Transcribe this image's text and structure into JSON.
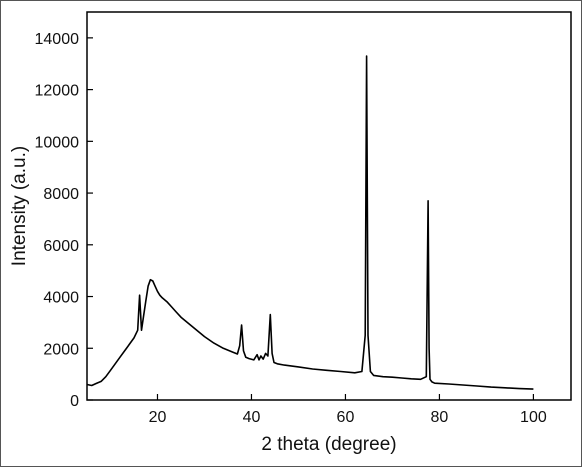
{
  "chart_data": {
    "type": "line",
    "title": "",
    "xlabel": "2 theta (degree)",
    "ylabel": "Intensity (a.u.)",
    "xlim": [
      5,
      108
    ],
    "ylim": [
      0,
      15000
    ],
    "xticks": [
      20,
      40,
      60,
      80,
      100
    ],
    "yticks": [
      0,
      2000,
      4000,
      6000,
      8000,
      10000,
      12000,
      14000
    ],
    "grid": false,
    "legend": "none",
    "line_color": "#000000",
    "series": [
      {
        "x": [
          5,
          6,
          7,
          8,
          9,
          10,
          11,
          12,
          13,
          14,
          15,
          15.8,
          16.2,
          16.6,
          17.0,
          17.5,
          18.0,
          18.5,
          19.0,
          19.5,
          20.0,
          20.5,
          21,
          22,
          23,
          24,
          25,
          26,
          27,
          28,
          29,
          30,
          32,
          34,
          36,
          37.0,
          37.5,
          37.9,
          38.3,
          38.8,
          39.5,
          40.5,
          41.2,
          41.6,
          42.0,
          42.5,
          43.0,
          43.5,
          44.0,
          44.4,
          44.8,
          45.5,
          47,
          50,
          53,
          56,
          59,
          62,
          63.5,
          64.2,
          64.5,
          64.8,
          65.3,
          66,
          68,
          70,
          72,
          74,
          76,
          77.2,
          77.6,
          77.8,
          78.0,
          78.4,
          79,
          82,
          85,
          88,
          91,
          94,
          97,
          100
        ],
        "y": [
          600,
          560,
          640,
          720,
          900,
          1150,
          1400,
          1650,
          1900,
          2150,
          2400,
          2700,
          4050,
          2700,
          3200,
          3800,
          4400,
          4650,
          4600,
          4400,
          4200,
          4050,
          3950,
          3800,
          3600,
          3400,
          3200,
          3050,
          2900,
          2750,
          2600,
          2450,
          2200,
          2000,
          1850,
          1780,
          2100,
          2900,
          1900,
          1650,
          1600,
          1550,
          1750,
          1550,
          1700,
          1580,
          1800,
          1700,
          3300,
          1800,
          1450,
          1400,
          1350,
          1280,
          1200,
          1150,
          1100,
          1050,
          1100,
          2500,
          13300,
          2500,
          1100,
          950,
          900,
          880,
          850,
          820,
          800,
          900,
          7700,
          2000,
          800,
          700,
          650,
          620,
          580,
          540,
          500,
          470,
          440,
          420
        ]
      }
    ]
  }
}
